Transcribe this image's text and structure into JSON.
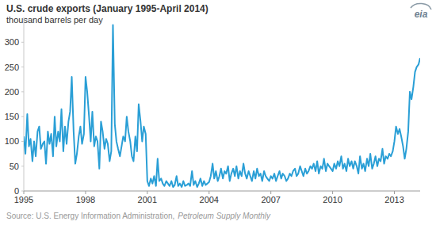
{
  "chart_data": {
    "type": "line",
    "title": "U.S. crude exports (January 1995-April 2014)",
    "subtitle": "thousand barrels per day",
    "source": {
      "text": "Source: U.S. Energy Information Administration,",
      "publication": "Petroleum Supply Monthly"
    },
    "logo": "eia",
    "color": "#2a9fd6",
    "grid": false,
    "xlim": [
      1995,
      2014.25
    ],
    "xticks": [
      1995,
      1998,
      2001,
      2004,
      2007,
      2010,
      2013
    ],
    "ylim": [
      0,
      350
    ],
    "yticks": [
      0,
      50,
      100,
      150,
      200,
      250,
      300
    ],
    "x": [
      1995,
      1995.08,
      1995.17,
      1995.25,
      1995.33,
      1995.42,
      1995.5,
      1995.58,
      1995.67,
      1995.75,
      1995.83,
      1995.92,
      1996,
      1996.08,
      1996.17,
      1996.25,
      1996.33,
      1996.42,
      1996.5,
      1996.58,
      1996.67,
      1996.75,
      1996.83,
      1996.92,
      1997,
      1997.08,
      1997.17,
      1997.25,
      1997.33,
      1997.42,
      1997.5,
      1997.58,
      1997.67,
      1997.75,
      1997.83,
      1997.92,
      1998,
      1998.08,
      1998.17,
      1998.25,
      1998.33,
      1998.42,
      1998.5,
      1998.58,
      1998.67,
      1998.75,
      1998.83,
      1998.92,
      1999,
      1999.08,
      1999.17,
      1999.25,
      1999.33,
      1999.42,
      1999.5,
      1999.58,
      1999.67,
      1999.75,
      1999.83,
      1999.92,
      2000,
      2000.08,
      2000.17,
      2000.25,
      2000.33,
      2000.42,
      2000.5,
      2000.58,
      2000.67,
      2000.75,
      2000.83,
      2000.92,
      2001,
      2001.08,
      2001.17,
      2001.25,
      2001.33,
      2001.42,
      2001.5,
      2001.58,
      2001.67,
      2001.75,
      2001.83,
      2001.92,
      2002,
      2002.08,
      2002.17,
      2002.25,
      2002.33,
      2002.42,
      2002.5,
      2002.58,
      2002.67,
      2002.75,
      2002.83,
      2002.92,
      2003,
      2003.08,
      2003.17,
      2003.25,
      2003.33,
      2003.42,
      2003.5,
      2003.58,
      2003.67,
      2003.75,
      2003.83,
      2003.92,
      2004,
      2004.08,
      2004.17,
      2004.25,
      2004.33,
      2004.42,
      2004.5,
      2004.58,
      2004.67,
      2004.75,
      2004.83,
      2004.92,
      2005,
      2005.08,
      2005.17,
      2005.25,
      2005.33,
      2005.42,
      2005.5,
      2005.58,
      2005.67,
      2005.75,
      2005.83,
      2005.92,
      2006,
      2006.08,
      2006.17,
      2006.25,
      2006.33,
      2006.42,
      2006.5,
      2006.58,
      2006.67,
      2006.75,
      2006.83,
      2006.92,
      2007,
      2007.08,
      2007.17,
      2007.25,
      2007.33,
      2007.42,
      2007.5,
      2007.58,
      2007.67,
      2007.75,
      2007.83,
      2007.92,
      2008,
      2008.08,
      2008.17,
      2008.25,
      2008.33,
      2008.42,
      2008.5,
      2008.58,
      2008.67,
      2008.75,
      2008.83,
      2008.92,
      2009,
      2009.08,
      2009.17,
      2009.25,
      2009.33,
      2009.42,
      2009.5,
      2009.58,
      2009.67,
      2009.75,
      2009.83,
      2009.92,
      2010,
      2010.08,
      2010.17,
      2010.25,
      2010.33,
      2010.42,
      2010.5,
      2010.58,
      2010.67,
      2010.75,
      2010.83,
      2010.92,
      2011,
      2011.08,
      2011.17,
      2011.25,
      2011.33,
      2011.42,
      2011.5,
      2011.58,
      2011.67,
      2011.75,
      2011.83,
      2011.92,
      2012,
      2012.08,
      2012.17,
      2012.25,
      2012.33,
      2012.42,
      2012.5,
      2012.58,
      2012.67,
      2012.75,
      2012.83,
      2012.92,
      2013,
      2013.08,
      2013.17,
      2013.25,
      2013.33,
      2013.42,
      2013.5,
      2013.58,
      2013.67,
      2013.75,
      2013.83,
      2013.92,
      2014,
      2014.08,
      2014.17,
      2014.25
    ],
    "values": [
      110,
      75,
      155,
      90,
      105,
      60,
      100,
      70,
      120,
      130,
      85,
      95,
      100,
      55,
      120,
      95,
      115,
      70,
      150,
      90,
      120,
      100,
      165,
      80,
      130,
      95,
      140,
      160,
      230,
      120,
      55,
      75,
      110,
      130,
      95,
      115,
      230,
      200,
      150,
      100,
      160,
      90,
      110,
      100,
      45,
      140,
      120,
      85,
      105,
      95,
      60,
      80,
      335,
      135,
      100,
      85,
      70,
      90,
      110,
      100,
      150,
      120,
      100,
      70,
      60,
      110,
      80,
      175,
      140,
      100,
      130,
      115,
      20,
      10,
      25,
      15,
      30,
      10,
      65,
      20,
      25,
      15,
      10,
      20,
      15,
      10,
      20,
      8,
      12,
      30,
      10,
      15,
      8,
      20,
      10,
      12,
      15,
      10,
      40,
      12,
      20,
      8,
      15,
      25,
      10,
      20,
      12,
      15,
      18,
      30,
      55,
      25,
      40,
      20,
      30,
      45,
      25,
      40,
      35,
      50,
      20,
      35,
      45,
      30,
      50,
      25,
      40,
      30,
      55,
      35,
      25,
      40,
      30,
      20,
      40,
      25,
      45,
      30,
      35,
      20,
      40,
      30,
      25,
      20,
      30,
      25,
      35,
      20,
      30,
      40,
      25,
      35,
      30,
      20,
      25,
      35,
      30,
      40,
      45,
      30,
      35,
      50,
      40,
      30,
      45,
      35,
      40,
      50,
      45,
      55,
      40,
      60,
      35,
      50,
      45,
      65,
      40,
      55,
      50,
      45,
      40,
      55,
      45,
      60,
      50,
      70,
      45,
      55,
      40,
      65,
      50,
      60,
      45,
      60,
      50,
      35,
      70,
      45,
      55,
      40,
      65,
      50,
      75,
      45,
      55,
      70,
      50,
      65,
      60,
      85,
      55,
      70,
      65,
      75,
      70,
      80,
      100,
      130,
      115,
      125,
      110,
      90,
      65,
      85,
      120,
      200,
      185,
      210,
      240,
      250,
      255,
      268
    ]
  }
}
